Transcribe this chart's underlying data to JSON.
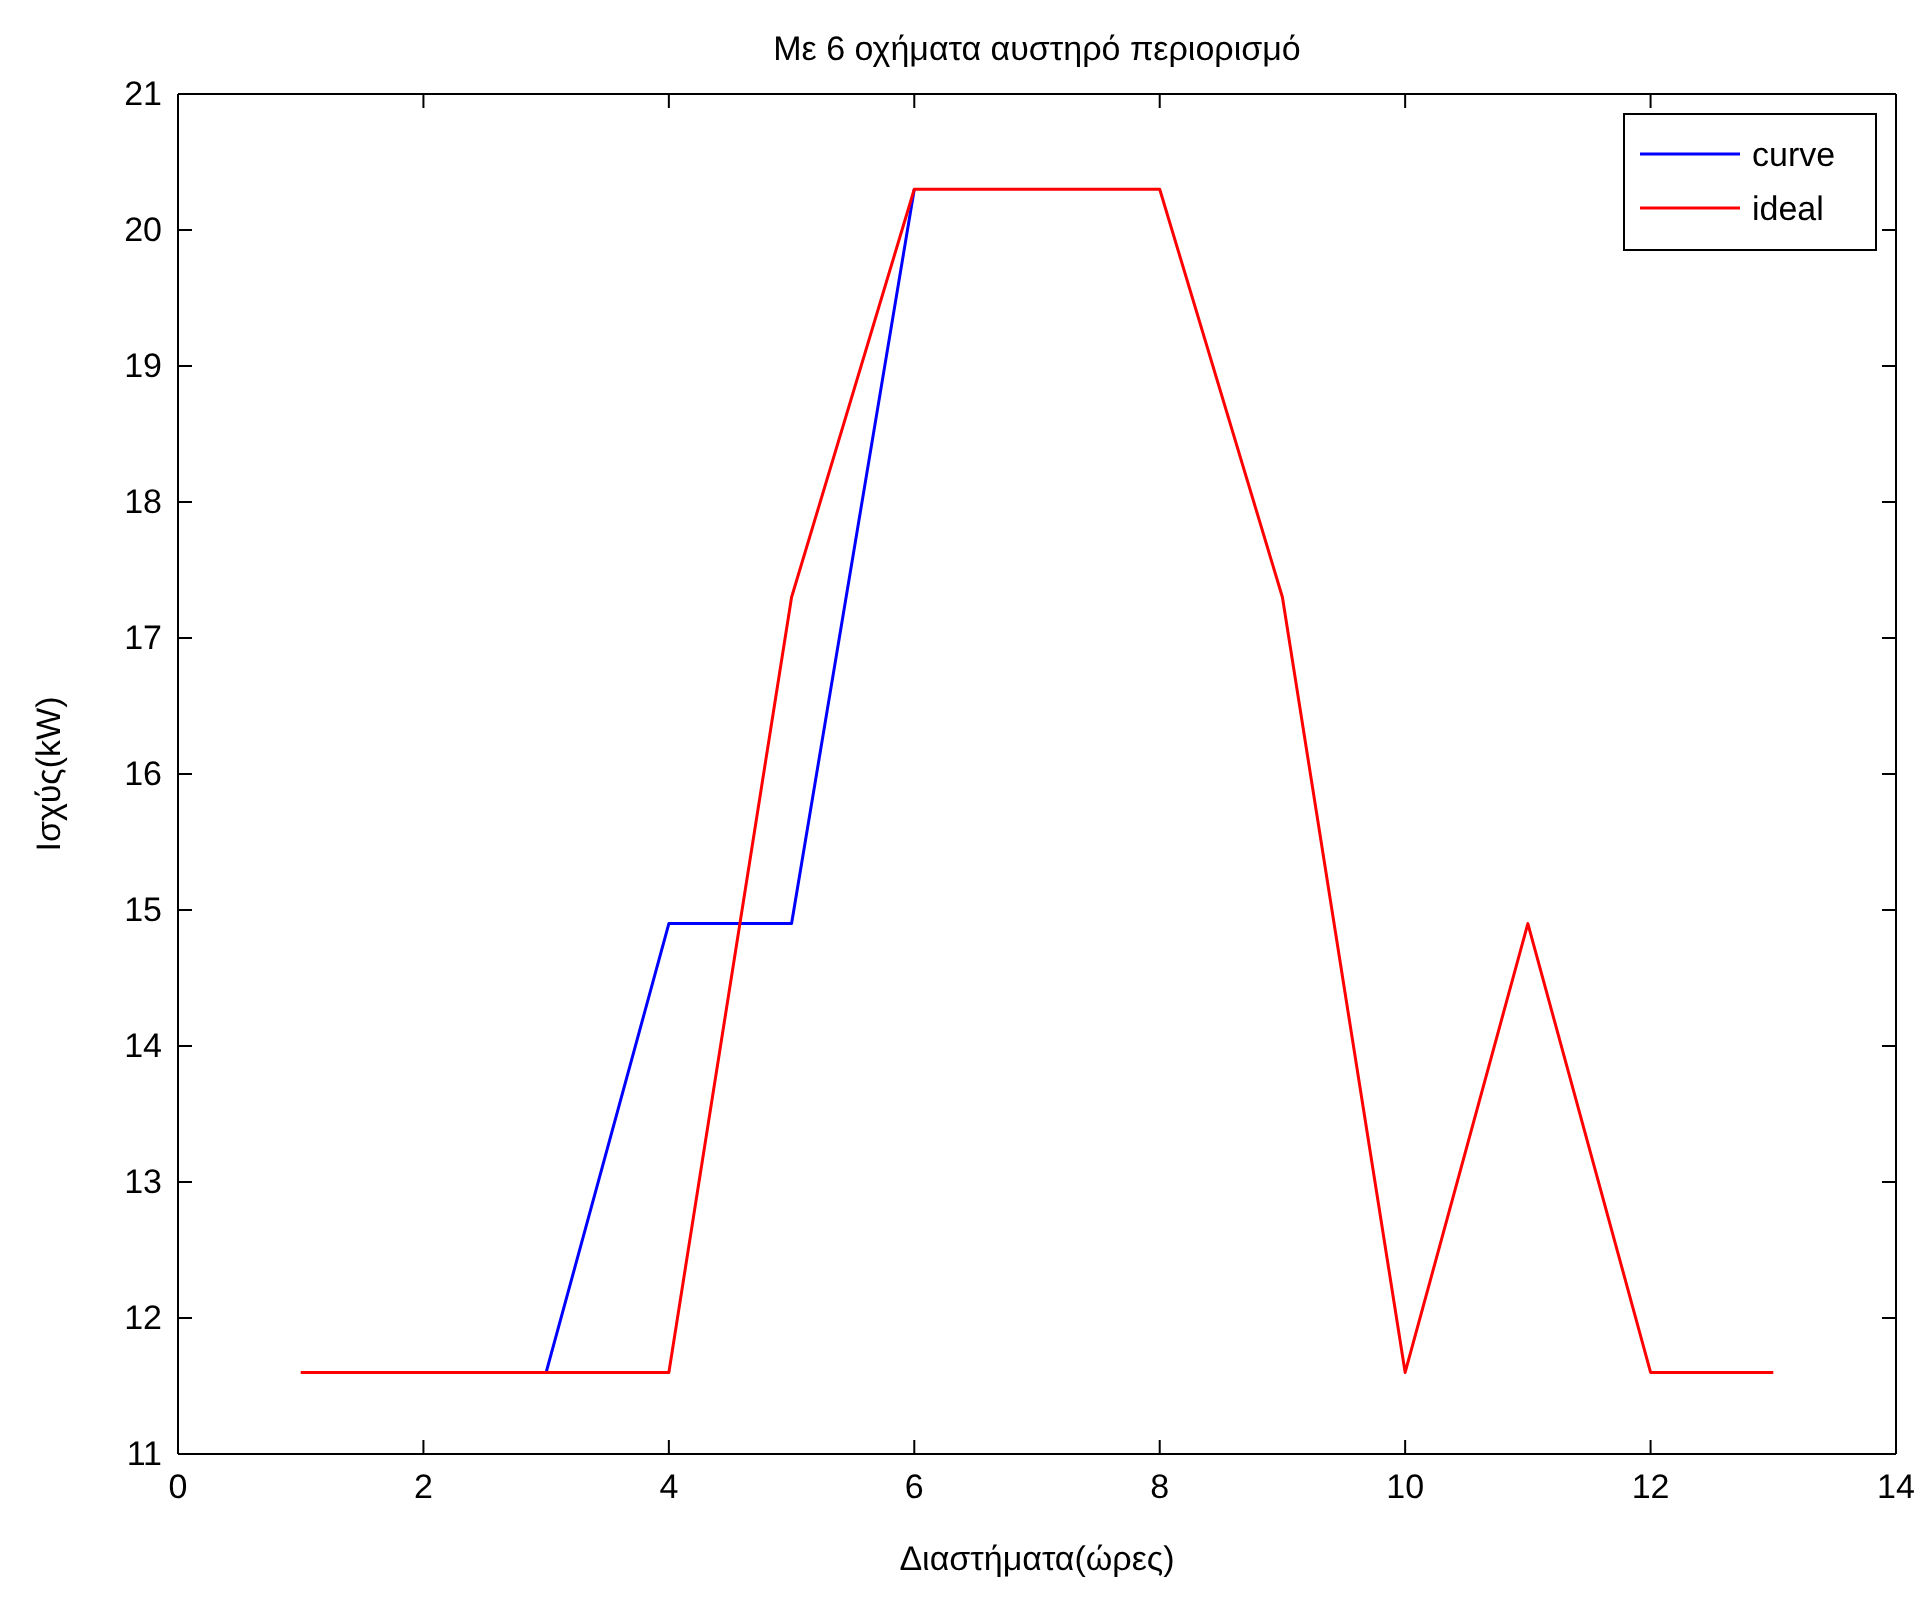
{
  "chart_data": {
    "type": "line",
    "title": "Με 6 οχήματα αυστηρό περιορισμό",
    "xlabel": "Διαστήματα(ώρες)",
    "ylabel": "Ισχύς(kW)",
    "x": [
      1,
      2,
      3,
      4,
      5,
      6,
      7,
      8,
      9,
      10,
      11,
      12,
      13
    ],
    "series": [
      {
        "name": "curve",
        "color": "#0000ff",
        "values": [
          null,
          null,
          11.6,
          14.9,
          14.9,
          20.3,
          null,
          null,
          null,
          null,
          null,
          null,
          null
        ]
      },
      {
        "name": "ideal",
        "color": "#ff0000",
        "values": [
          11.6,
          11.6,
          11.6,
          11.6,
          17.3,
          20.3,
          20.3,
          20.3,
          17.3,
          11.6,
          14.9,
          11.6,
          11.6
        ]
      }
    ],
    "xlim": [
      0,
      14
    ],
    "xticks": [
      0,
      2,
      4,
      6,
      8,
      10,
      12,
      14
    ],
    "ylim": [
      11,
      21
    ],
    "yticks": [
      11,
      12,
      13,
      14,
      15,
      16,
      17,
      18,
      19,
      20,
      21
    ],
    "grid": false,
    "legend": "top right",
    "line_style": "solid"
  }
}
